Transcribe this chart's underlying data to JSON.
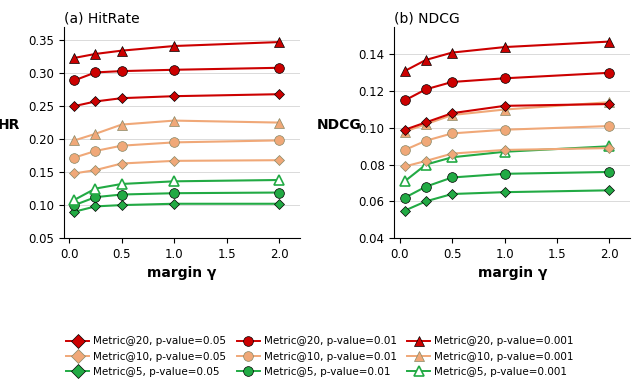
{
  "x": [
    0.05,
    0.25,
    0.5,
    1.0,
    2.0
  ],
  "xlabel": "margin γ",
  "subplot_titles": [
    "(a) HitRate",
    "(b) NDCG"
  ],
  "hr": {
    "red_diamond": [
      0.25,
      0.257,
      0.262,
      0.265,
      0.268
    ],
    "red_circle": [
      0.289,
      0.301,
      0.303,
      0.305,
      0.308
    ],
    "red_triangle": [
      0.323,
      0.329,
      0.334,
      0.341,
      0.347
    ],
    "orange_diamond": [
      0.148,
      0.153,
      0.163,
      0.167,
      0.168
    ],
    "orange_circle": [
      0.172,
      0.182,
      0.19,
      0.195,
      0.198
    ],
    "orange_triangle": [
      0.198,
      0.208,
      0.222,
      0.228,
      0.225
    ],
    "green_diamond": [
      0.09,
      0.098,
      0.1,
      0.102,
      0.102
    ],
    "green_circle": [
      0.1,
      0.112,
      0.116,
      0.118,
      0.119
    ],
    "green_triangle": [
      0.108,
      0.125,
      0.132,
      0.136,
      0.138
    ]
  },
  "ndcg": {
    "red_diamond": [
      0.099,
      0.103,
      0.108,
      0.112,
      0.113
    ],
    "red_circle": [
      0.115,
      0.121,
      0.125,
      0.127,
      0.13
    ],
    "red_triangle": [
      0.131,
      0.137,
      0.141,
      0.144,
      0.147
    ],
    "orange_diamond": [
      0.079,
      0.082,
      0.086,
      0.088,
      0.089
    ],
    "orange_circle": [
      0.088,
      0.093,
      0.097,
      0.099,
      0.101
    ],
    "orange_triangle": [
      0.098,
      0.102,
      0.107,
      0.11,
      0.114
    ],
    "green_diamond": [
      0.055,
      0.06,
      0.064,
      0.065,
      0.066
    ],
    "green_circle": [
      0.062,
      0.068,
      0.073,
      0.075,
      0.076
    ],
    "green_triangle": [
      0.071,
      0.08,
      0.084,
      0.087,
      0.09
    ]
  },
  "red": "#cc0000",
  "orange": "#f0a878",
  "green": "#22aa44",
  "hr_ylim": [
    0.05,
    0.37
  ],
  "hr_yticks": [
    0.05,
    0.1,
    0.15,
    0.2,
    0.25,
    0.3,
    0.35
  ],
  "ndcg_ylim": [
    0.04,
    0.155
  ],
  "ndcg_yticks": [
    0.04,
    0.06,
    0.08,
    0.1,
    0.12,
    0.14
  ],
  "xlim": [
    -0.05,
    2.2
  ],
  "xticks": [
    0,
    0.5,
    1,
    1.5,
    2
  ]
}
